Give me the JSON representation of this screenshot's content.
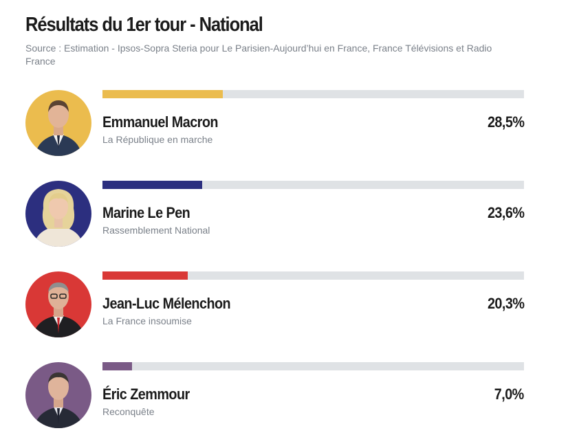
{
  "header": {
    "title": "Résultats du 1er tour - National",
    "source": "Source : Estimation - Ipsos-Sopra Steria pour Le Parisien-Aujourd’hui en France, France Télévisions et Radio France"
  },
  "chart_data": {
    "type": "bar",
    "title": "Résultats du 1er tour - National",
    "scale_max": 100,
    "candidates": [
      {
        "name": "Emmanuel Macron",
        "party": "La République en marche",
        "value": 28.5,
        "label": "28,5%",
        "color": "#ebbc4e",
        "avatar_bg": "#ebbc4e"
      },
      {
        "name": "Marine Le Pen",
        "party": "Rassemblement National",
        "value": 23.6,
        "label": "23,6%",
        "color": "#2c2f7f",
        "avatar_bg": "#2c2f7f"
      },
      {
        "name": "Jean-Luc Mélenchon",
        "party": "La France insoumise",
        "value": 20.3,
        "label": "20,3%",
        "color": "#d93836",
        "avatar_bg": "#d93836"
      },
      {
        "name": "Éric Zemmour",
        "party": "Reconquête",
        "value": 7.0,
        "label": "7,0%",
        "color": "#7a5a86",
        "avatar_bg": "#7a5a86"
      }
    ]
  }
}
